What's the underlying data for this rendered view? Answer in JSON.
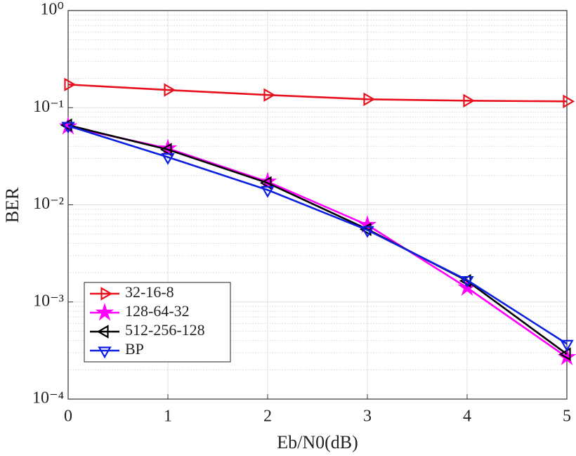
{
  "chart_data": {
    "type": "line",
    "x_label": "Eb/N0(dB)",
    "y_label": "BER",
    "x": [
      0,
      1,
      2,
      3,
      4,
      5
    ],
    "series": [
      {
        "name": "32-16-8",
        "color": "#e8101c",
        "marker": "triangle-right",
        "values": [
          0.173,
          0.152,
          0.135,
          0.122,
          0.118,
          0.116
        ]
      },
      {
        "name": "128-64-32",
        "color": "#ff00ff",
        "marker": "star",
        "values": [
          0.064,
          0.038,
          0.0173,
          0.0062,
          0.0014,
          0.00027
        ]
      },
      {
        "name": "512-256-128",
        "color": "#000000",
        "marker": "triangle-left",
        "values": [
          0.066,
          0.037,
          0.0168,
          0.0056,
          0.00165,
          0.00029
        ]
      },
      {
        "name": "BP",
        "color": "#0a1fe0",
        "marker": "triangle-down",
        "values": [
          0.065,
          0.031,
          0.0142,
          0.0055,
          0.00168,
          0.00037
        ]
      }
    ],
    "xlim": [
      0,
      5
    ],
    "xticks": [
      0,
      1,
      2,
      3,
      4,
      5
    ],
    "ylim": [
      0.0001,
      1
    ],
    "log_y": true,
    "yticks": [
      {
        "value": 0.0001,
        "label": "10⁻⁴"
      },
      {
        "value": 0.001,
        "label": "10⁻³"
      },
      {
        "value": 0.01,
        "label": "10⁻²"
      },
      {
        "value": 0.1,
        "label": "10⁻¹"
      },
      {
        "value": 1,
        "label": "10⁰"
      }
    ],
    "grid": true,
    "minor_grid": true,
    "legend": "lower left"
  }
}
